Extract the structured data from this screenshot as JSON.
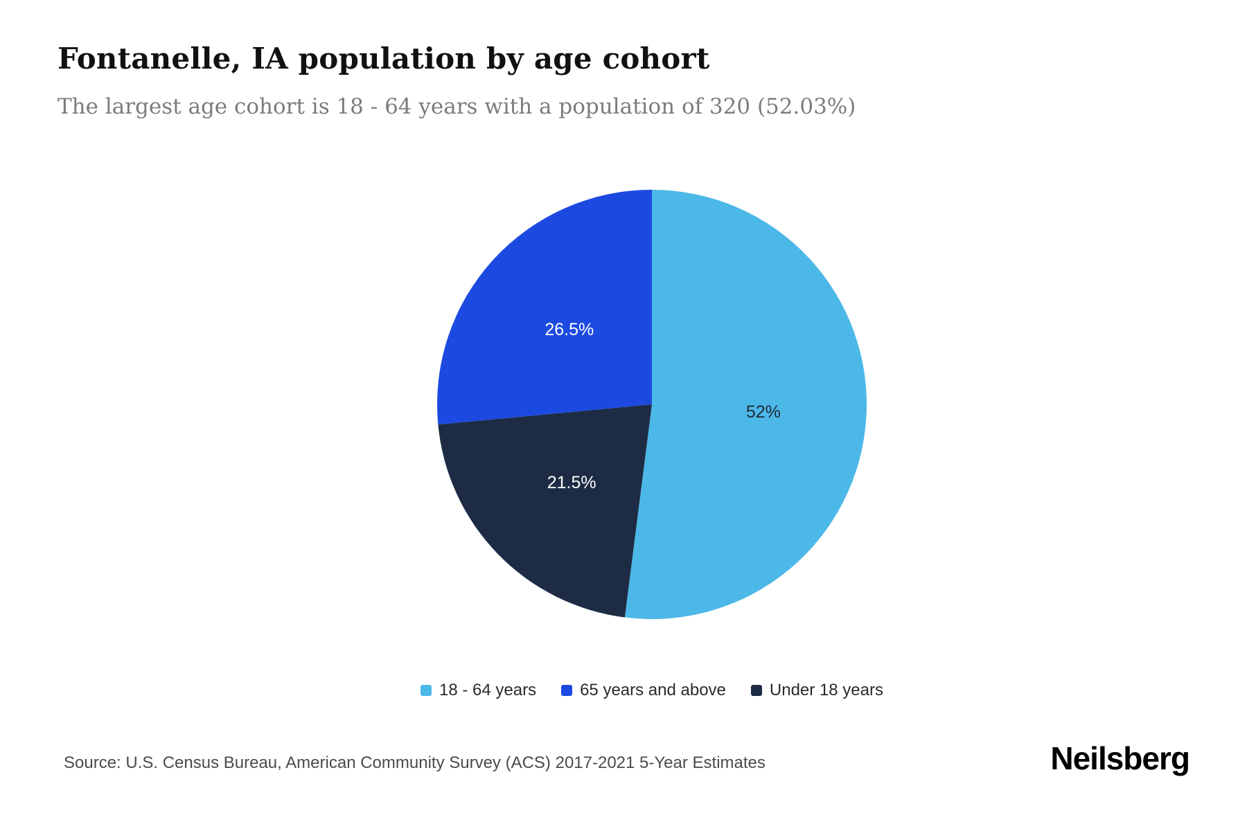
{
  "header": {
    "title": "Fontanelle, IA population by age cohort",
    "subtitle": "The largest age cohort is 18 - 64 years with a population of 320 (52.03%)"
  },
  "chart_data": {
    "type": "pie",
    "title": "Fontanelle, IA population by age cohort",
    "unit": "percent",
    "start_angle_deg": 0,
    "direction": "clockwise",
    "legend_position": "bottom",
    "slices": [
      {
        "label": "18 - 64 years",
        "value": 52.03,
        "display": "52%",
        "population": 320,
        "color": "#4cb8e8",
        "text_color": "#1f2937"
      },
      {
        "label": "Under 18 years",
        "value": 21.5,
        "display": "21.5%",
        "color": "#1d2c44",
        "text_color": "#ffffff"
      },
      {
        "label": "65 years and above",
        "value": 26.5,
        "display": "26.5%",
        "color": "#1c49e0",
        "text_color": "#ffffff"
      }
    ]
  },
  "legend": {
    "items": [
      {
        "label": "18 - 64 years",
        "color": "#4cb8e8"
      },
      {
        "label": "65 years and above",
        "color": "#1c49e0"
      },
      {
        "label": "Under 18 years",
        "color": "#1d2c44"
      }
    ]
  },
  "footer": {
    "source": "Source: U.S. Census Bureau, American Community Survey (ACS) 2017-2021 5-Year Estimates",
    "brand": "Neilsberg"
  }
}
